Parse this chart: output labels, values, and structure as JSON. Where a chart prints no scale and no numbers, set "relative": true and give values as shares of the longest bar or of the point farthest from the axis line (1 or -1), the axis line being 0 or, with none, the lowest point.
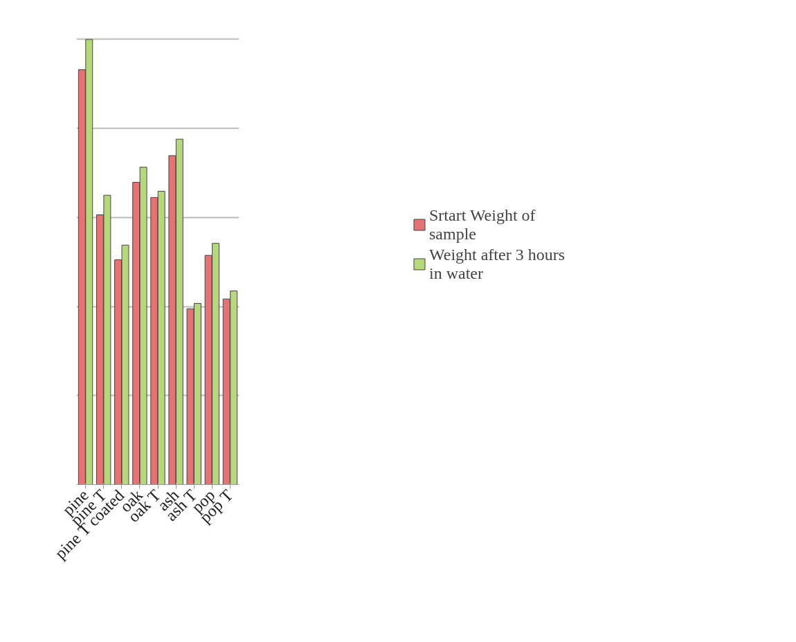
{
  "chart_data": {
    "type": "bar",
    "relative": true,
    "grid": "y",
    "legend": "right",
    "categories": [
      "pine",
      "pine T",
      "pine T coated",
      "oak",
      "oak T",
      "ash",
      "ash T",
      "pop",
      "pop T"
    ],
    "series": [
      {
        "name": "Srtart Weight of sample",
        "color": "#e57373",
        "values": [
          0.932,
          0.606,
          0.505,
          0.679,
          0.645,
          0.739,
          0.395,
          0.515,
          0.417
        ]
      },
      {
        "name": "Weight after 3 hours in water",
        "color": "#b5d97a",
        "values": [
          1,
          0.65,
          0.538,
          0.713,
          0.659,
          0.776,
          0.407,
          0.542,
          0.435
        ]
      }
    ]
  }
}
